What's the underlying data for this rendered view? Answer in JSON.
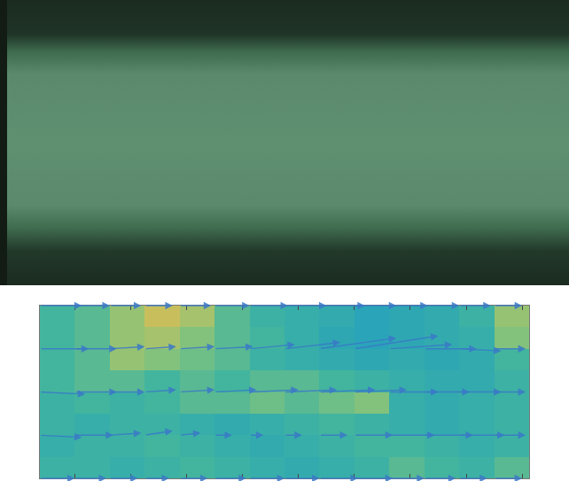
{
  "chart_data": {
    "type": "quiver_heatmap",
    "xlim": [
      0,
      14
    ],
    "ylim": [
      0,
      8
    ],
    "xticks": [
      1,
      2.6,
      4.2,
      5.8,
      7.4,
      9,
      10.6,
      12.2,
      13.8
    ],
    "tick_labels": false,
    "color": "#3a78c8",
    "cells": {
      "x": [
        0.5,
        1.5,
        2.5,
        3.5,
        4.5,
        5.5,
        6.5,
        7.5,
        8.5,
        9.5,
        10.5,
        11.5,
        12.5,
        13.5
      ],
      "y": [
        0.5,
        1.5,
        2.5,
        3.5,
        4.5,
        5.5,
        6.5,
        7.5
      ],
      "z": [
        [
          0.5,
          0.5,
          0.45,
          0.5,
          0.55,
          0.5,
          0.45,
          0.4,
          0.45,
          0.5,
          0.6,
          0.55,
          0.5,
          0.6
        ],
        [
          0.45,
          0.5,
          0.5,
          0.55,
          0.5,
          0.45,
          0.4,
          0.45,
          0.5,
          0.55,
          0.55,
          0.5,
          0.45,
          0.5
        ],
        [
          0.5,
          0.45,
          0.5,
          0.5,
          0.45,
          0.4,
          0.45,
          0.5,
          0.55,
          0.5,
          0.45,
          0.4,
          0.45,
          0.5
        ],
        [
          0.5,
          0.55,
          0.5,
          0.55,
          0.6,
          0.6,
          0.65,
          0.6,
          0.65,
          0.7,
          0.45,
          0.4,
          0.45,
          0.5
        ],
        [
          0.55,
          0.6,
          0.6,
          0.55,
          0.6,
          0.55,
          0.6,
          0.6,
          0.55,
          0.5,
          0.45,
          0.4,
          0.4,
          0.5
        ],
        [
          0.55,
          0.6,
          0.75,
          0.7,
          0.65,
          0.6,
          0.5,
          0.45,
          0.4,
          0.35,
          0.4,
          0.35,
          0.4,
          0.55
        ],
        [
          0.55,
          0.6,
          0.75,
          0.8,
          0.7,
          0.6,
          0.55,
          0.45,
          0.35,
          0.3,
          0.35,
          0.4,
          0.45,
          0.7
        ],
        [
          0.55,
          0.6,
          0.75,
          0.9,
          0.8,
          0.6,
          0.5,
          0.45,
          0.4,
          0.3,
          0.35,
          0.4,
          0.5,
          0.75
        ]
      ]
    },
    "vectors": [
      {
        "y": 8,
        "x": [
          0,
          1,
          2,
          3,
          4,
          5,
          6,
          7,
          8,
          9,
          10,
          11,
          12,
          13
        ],
        "u": [
          1.2,
          1.0,
          0.9,
          0.8,
          0.9,
          1.0,
          1.1,
          1.2,
          1.3,
          1.2,
          1.1,
          1.0,
          0.9,
          0.8
        ],
        "v": [
          0,
          0,
          0,
          0,
          0,
          0,
          0,
          0,
          0,
          0,
          0,
          0,
          0,
          0
        ]
      },
      {
        "y": 6,
        "x": [
          0,
          1,
          2,
          3,
          4,
          5,
          6,
          7,
          8,
          9,
          10,
          11,
          12,
          13
        ],
        "u": [
          1.4,
          1.2,
          1.0,
          0.9,
          1.0,
          1.1,
          1.3,
          1.6,
          2.2,
          2.4,
          1.8,
          1.5,
          1.2,
          0.9
        ],
        "v": [
          0,
          0,
          0.1,
          0.1,
          0.1,
          0.1,
          0.2,
          0.3,
          0.5,
          0.6,
          0.2,
          0,
          -0.1,
          0
        ]
      },
      {
        "y": 4,
        "x": [
          0,
          1,
          2,
          3,
          4,
          5,
          6,
          7,
          8,
          9,
          10,
          11,
          12,
          13
        ],
        "u": [
          1.3,
          1.2,
          1.0,
          0.9,
          1.0,
          1.2,
          1.4,
          1.5,
          1.6,
          1.5,
          1.4,
          1.3,
          1.2,
          0.9
        ],
        "v": [
          -0.1,
          0,
          0,
          0.1,
          0.1,
          0.1,
          0.1,
          0.1,
          0.1,
          0.1,
          0,
          0,
          0,
          0
        ]
      },
      {
        "y": 2,
        "x": [
          0,
          1,
          2,
          3,
          4,
          5,
          6,
          7,
          8,
          9,
          10,
          11,
          12,
          13
        ],
        "u": [
          1.2,
          1.1,
          0.9,
          0.8,
          0.6,
          0.5,
          0.4,
          0.5,
          0.8,
          1.1,
          1.3,
          1.4,
          1.3,
          0.9
        ],
        "v": [
          -0.1,
          0,
          0.1,
          0.2,
          0.1,
          0,
          0,
          0,
          0,
          0,
          0,
          0,
          0,
          0
        ]
      },
      {
        "y": 0,
        "x": [
          0,
          1,
          2,
          3,
          4,
          5,
          6,
          7,
          8,
          9,
          10,
          11,
          12,
          13
        ],
        "u": [
          1.0,
          0.9,
          0.8,
          0.7,
          0.8,
          0.9,
          1.0,
          1.0,
          1.1,
          1.1,
          1.0,
          0.9,
          0.8,
          0.8
        ],
        "v": [
          0,
          0,
          0,
          0,
          0,
          0,
          0,
          0,
          0,
          0,
          0,
          0,
          0,
          0
        ]
      }
    ]
  }
}
